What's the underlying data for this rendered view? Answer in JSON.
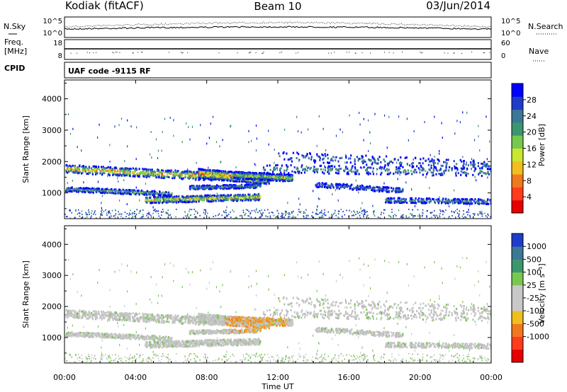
{
  "header": {
    "station": "Kodiak (fitACF)",
    "beam": "Beam 10",
    "date": "03/Jun/2014"
  },
  "noise_panel": {
    "left_label": "N.Sky",
    "right_label": "N.Search",
    "left_ticks": [
      "10^5",
      "10^0"
    ],
    "right_ticks": [
      "10^5",
      "10^0"
    ]
  },
  "freq_panel": {
    "left_label_1": "Freq.",
    "left_label_2": "[MHz]",
    "left_ticks": [
      "18",
      "8"
    ],
    "right_label": "Nave",
    "right_ticks": [
      "60",
      "0"
    ]
  },
  "cpid_panel": {
    "label": "CPID",
    "text": "UAF code -9115 RF"
  },
  "chart_data": [
    {
      "type": "heatmap",
      "name": "power",
      "ylabel": "Slant Range [km]",
      "yticks": [
        "1000",
        "2000",
        "3000",
        "4000"
      ],
      "ylim": [
        180,
        4600
      ],
      "xlim": [
        0,
        24
      ],
      "colorbar": {
        "label": "Power [dB]",
        "ticks": [
          "4",
          "8",
          "12",
          "16",
          "20",
          "24",
          "28"
        ],
        "colors": [
          "#0000ff",
          "#1e3cc8",
          "#3c7896",
          "#3c966e",
          "#78c850",
          "#c8e632",
          "#f0be1e",
          "#f0781e",
          "#ff3c1e",
          "#e60000"
        ]
      }
    },
    {
      "type": "heatmap",
      "name": "velocity",
      "ylabel": "Slant Range [km]",
      "yticks": [
        "1000",
        "2000",
        "3000",
        "4000"
      ],
      "ylim": [
        180,
        4600
      ],
      "xlim": [
        0,
        24
      ],
      "xlabel": "Time UT",
      "xticks": [
        "00:00",
        "04:00",
        "08:00",
        "12:00",
        "16:00",
        "20:00",
        "00:00"
      ],
      "colorbar": {
        "label": "Velocity [m s⁻¹]",
        "ticks": [
          "1000",
          "500",
          "100",
          "25",
          "-25",
          "-100",
          "-500",
          "-1000"
        ],
        "colors": [
          "#1e3cc8",
          "#3c7896",
          "#3c966e",
          "#78c850",
          "#c8c8c8",
          "#c8c8c8",
          "#f0be1e",
          "#f0781e",
          "#ff3c1e",
          "#e60000"
        ]
      }
    }
  ]
}
